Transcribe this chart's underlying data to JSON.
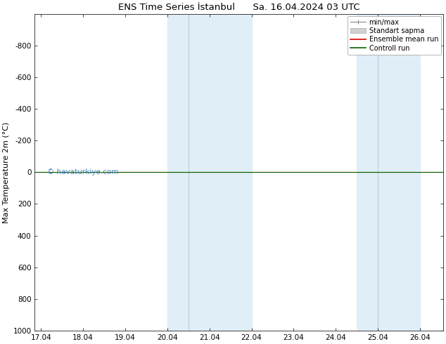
{
  "title": "ENS Time Series İstanbul      Sa. 16.04.2024 03 UTC",
  "ylabel": "Max Temperature 2m (°C)",
  "ylim_top": -1000,
  "ylim_bottom": 1000,
  "yticks": [
    -800,
    -600,
    -400,
    -200,
    0,
    200,
    400,
    600,
    800,
    1000
  ],
  "xtick_labels": [
    "17.04",
    "18.04",
    "19.04",
    "20.04",
    "21.04",
    "22.04",
    "23.04",
    "24.04",
    "25.04",
    "26.04"
  ],
  "xtick_positions": [
    0,
    1,
    2,
    3,
    4,
    5,
    6,
    7,
    8,
    9
  ],
  "xlim": [
    -0.15,
    9.55
  ],
  "shaded_bands": [
    {
      "x_start": 3.0,
      "x_end": 3.5,
      "color": "#ddeeff"
    },
    {
      "x_start": 3.5,
      "x_end": 5.0,
      "color": "#ddeeff"
    },
    {
      "x_start": 7.5,
      "x_end": 8.0,
      "color": "#ddeeff"
    },
    {
      "x_start": 8.0,
      "x_end": 9.0,
      "color": "#ddeeff"
    }
  ],
  "band_dividers": [
    3.5,
    8.0
  ],
  "shaded_regions": [
    {
      "x_start": 3.0,
      "x_end": 5.0
    },
    {
      "x_start": 7.5,
      "x_end": 9.0
    }
  ],
  "control_run_y": 0,
  "ensemble_mean_y": 0,
  "legend_entries": [
    "min/max",
    "Standart sapma",
    "Ensemble mean run",
    "Controll run"
  ],
  "minmax_color": "#888888",
  "std_facecolor": "#d0d0d0",
  "std_edgecolor": "#aaaaaa",
  "ensemble_color": "#dd0000",
  "control_color": "#006600",
  "watermark": "© havaturkiye.com",
  "watermark_color": "#3377bb",
  "bg_color": "#ffffff",
  "plot_bg_color": "#ffffff",
  "band_color": "#e0eef8",
  "band_divider_color": "#aaccdd",
  "title_fontsize": 9.5,
  "axis_label_fontsize": 8,
  "tick_fontsize": 7.5,
  "legend_fontsize": 7
}
